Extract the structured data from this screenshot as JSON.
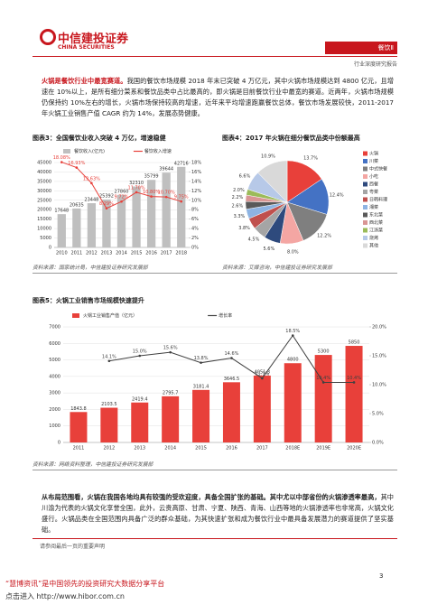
{
  "header": {
    "company": "中信建投证券",
    "company_en": "CHINA SECURITIES",
    "sector": "餐饮Ⅱ",
    "report_type": "行业深度研究报告"
  },
  "body": [
    {
      "lead": "火锅是餐饮行业中最宽赛道。",
      "text": "我国的餐饮市场规模 2018 年末已突破 4 万亿元，其中火锅市场规模达到 4800 亿元，且增速在 10%以上，是所有细分菜系和餐饮品类中占比最高的，即火锅是目前餐饮行业中最宽的赛道。近两年，火锅市场规模仍保持约 10%左右的增长，火锅市场保持较高的增速，近年来平均增速跑赢餐饮总体，餐饮市场发展较快，2011-2017 年火锅工业销售产值 CAGR 约为 14%，发展态势健康。"
    },
    {
      "lead": "从布局范围看，火锅在我国各地均具有较强的受欢迎度，具备全国扩张的基础。其中尤以中部省份的火锅渗透率最高，",
      "text": "其中川渝为代表的火锅文化享誉全国，此外，云贵高原、甘肃、宁夏、陕西、青海、山西等地的火锅渗透率也非常高，火锅文化盛行。火锅品类在全国范围内具备广泛的群众基础，为其快速扩张和成为餐饮行业中最具备发展潜力的赛道提供了坚实基础。"
    }
  ],
  "chart_data": [
    {
      "type": "combo",
      "label": "图表3：",
      "title": "全国餐饮业收入突破 4 万亿，增速稳健",
      "source": "资料来源：国家统计局，中信建投证券研究发展部",
      "categories": [
        "2010",
        "2011",
        "2012",
        "2013",
        "2014",
        "2015",
        "2016",
        "2017",
        "2018"
      ],
      "series": [
        {
          "name": "餐饮收入(亿元)",
          "type": "bar",
          "color": "#bfbfbf",
          "values": [
            17648,
            20635,
            23448,
            25392,
            27860,
            32310,
            35799,
            39644,
            42716
          ]
        },
        {
          "name": "餐饮收入增速",
          "type": "line",
          "axis": "y2",
          "color": "#e8403a",
          "values": [
            18.08,
            16.93,
            13.63,
            8.29,
            9.72,
            11.7,
            10.8,
            10.7,
            9.75
          ],
          "value_labels": [
            "18.08%",
            "16.93%",
            "13.63%",
            "8.29%",
            "9.72%",
            "11.70%",
            "10.80%",
            "10.70%",
            "9.75%"
          ]
        }
      ],
      "ylim": [
        0,
        45000
      ],
      "yticks": [
        0,
        5000,
        10000,
        15000,
        20000,
        25000,
        30000,
        35000,
        40000,
        45000
      ],
      "y2lim": [
        0,
        18
      ],
      "y2ticks": [
        {
          "value": 0,
          "label": "0%"
        },
        {
          "value": 2,
          "label": "2%"
        },
        {
          "value": 4,
          "label": "4%"
        },
        {
          "value": 6,
          "label": "6%"
        },
        {
          "value": 8,
          "label": "8%"
        },
        {
          "value": 10,
          "label": "10%"
        },
        {
          "value": 12,
          "label": "12%"
        },
        {
          "value": 14,
          "label": "14%"
        },
        {
          "value": 16,
          "label": "16%"
        },
        {
          "value": 18,
          "label": "18%"
        }
      ],
      "grid": true
    },
    {
      "type": "pie",
      "label": "图表4：",
      "title": "2017 年火锅在细分餐饮品类中份额最高",
      "source": "资料来源：艾媒咨询，中信建投证券研究发展部",
      "categories": [
        "火锅",
        "川菜",
        "中式快餐",
        "小吃",
        "西餐",
        "粤菜",
        "日韩料理",
        "湘菜",
        "东北菜",
        "西北菜",
        "江浙菜",
        "烧烤",
        "其他"
      ],
      "values": [
        13.7,
        12.4,
        12.2,
        8.0,
        5.6,
        4.5,
        3.8,
        3.3,
        2.6,
        2.2,
        2.0,
        6.6,
        10.9
      ],
      "value_labels": [
        "13.7%",
        "12.4%",
        "12.2%",
        "8.0%",
        "5.6%",
        "4.5%",
        "3.8%",
        "3.3%",
        "2.6%",
        "2.2%",
        "2.0%",
        "6.6%",
        "10.9%"
      ],
      "colors": [
        "#e8403a",
        "#4472c4",
        "#7f7f7f",
        "#f4a6a3",
        "#2e4a7d",
        "#a5a5a5",
        "#c0504d",
        "#8eb4e3",
        "#595959",
        "#d99694",
        "#9bbb59",
        "#b7c9e8",
        "#d9d9d9"
      ]
    },
    {
      "type": "combo",
      "label": "图表5：",
      "title": "火锅工业销售市场规模快速提升",
      "source": "资料来源：网络资料整理，中信建投证券研究发展部",
      "categories": [
        "2011",
        "2012",
        "2013",
        "2014",
        "2015",
        "2016",
        "2017",
        "2018E",
        "2019E",
        "2020E"
      ],
      "series": [
        {
          "name": "火锅工业销售产值（亿元）",
          "type": "bar",
          "color": "#e8403a",
          "values": [
            1843.8,
            2103.5,
            2419.4,
            2795.7,
            3181.4,
            3646.5,
            4051.3,
            4800,
            5300,
            5850
          ]
        },
        {
          "name": "增长率",
          "type": "line",
          "axis": "y2",
          "color": "#404040",
          "values": [
            null,
            14.1,
            15.0,
            15.6,
            13.8,
            14.6,
            11.1,
            18.5,
            10.4,
            10.4
          ],
          "value_labels": [
            null,
            "14.1%",
            "15.0%",
            "15.6%",
            "13.8%",
            "14.6%",
            "11.1%",
            "18.5%",
            "10.4%",
            "10.4%"
          ]
        }
      ],
      "ylim": [
        0,
        7000
      ],
      "yticks": [
        0,
        1000,
        2000,
        3000,
        4000,
        5000,
        6000,
        7000
      ],
      "y2lim": [
        0,
        20
      ],
      "y2ticks": [
        {
          "value": 0,
          "label": "0.0%"
        },
        {
          "value": 5,
          "label": "5.0%"
        },
        {
          "value": 10,
          "label": "10.0%"
        },
        {
          "value": 15,
          "label": "15.0%"
        },
        {
          "value": 20,
          "label": "20.0%"
        }
      ],
      "grid": true
    }
  ],
  "footer": {
    "disclaimer": "请参阅最后一页的重要声明",
    "page": 3,
    "watermark": "“慧博资讯”是中国领先的投资研究大数据分享平台",
    "link": "点击进入 http://www.hibor.com.cn"
  }
}
